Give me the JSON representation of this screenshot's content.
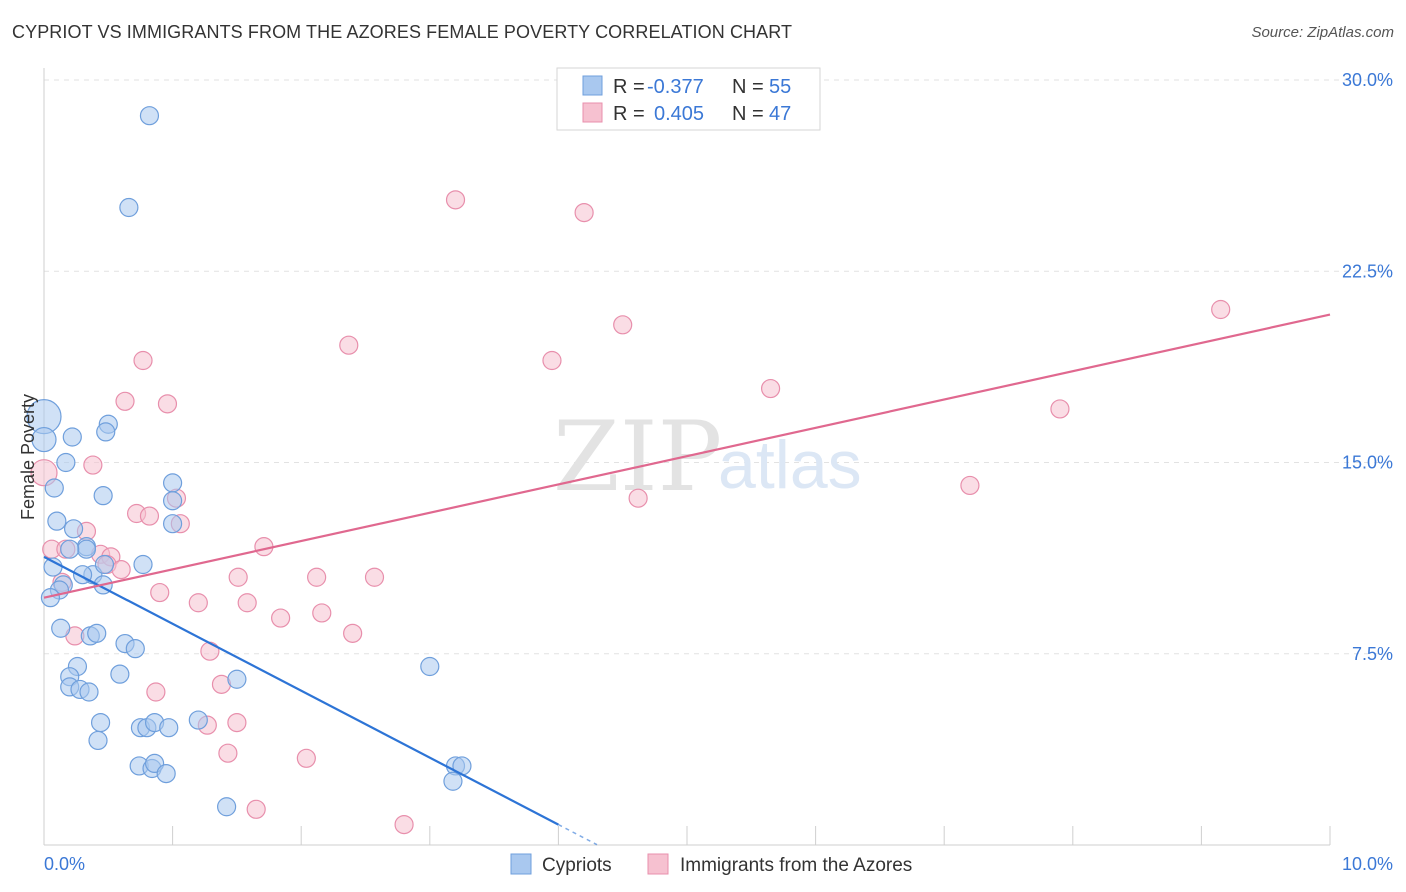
{
  "header": {
    "title": "CYPRIOT VS IMMIGRANTS FROM THE AZORES FEMALE POVERTY CORRELATION CHART",
    "source": "Source: ZipAtlas.com"
  },
  "watermark": {
    "zip": "ZIP",
    "atlas": "atlas"
  },
  "colors": {
    "cypriots_fill": "#a9c8ef",
    "cypriots_stroke": "#6f9fdc",
    "cypriots_line": "#2d74d6",
    "azores_fill": "#f6c1d0",
    "azores_stroke": "#e88fac",
    "azores_line": "#e0688f",
    "tick_label": "#3b78d6",
    "grid": "#e2e2e2"
  },
  "legend": {
    "rows": [
      {
        "r_label": "R =",
        "r_value": "-0.377",
        "n_label": "N =",
        "n_value": "55"
      },
      {
        "r_label": "R =",
        "r_value": "0.405",
        "n_label": "N =",
        "n_value": "47"
      }
    ]
  },
  "chart_data": {
    "type": "scatter",
    "title": "CYPRIOT VS IMMIGRANTS FROM THE AZORES FEMALE POVERTY CORRELATION CHART",
    "xlabel": "",
    "ylabel": "Female Poverty",
    "xlim": [
      0,
      10
    ],
    "ylim": [
      0,
      30
    ],
    "x_tick_labels": [
      "0.0%",
      "10.0%"
    ],
    "y_ticks": [
      7.5,
      15.0,
      22.5,
      30.0
    ],
    "y_tick_labels": [
      "7.5%",
      "15.0%",
      "22.5%",
      "30.0%"
    ],
    "grid": true,
    "legend_position": "top-center",
    "series": [
      {
        "name": "Cypriots",
        "r": -0.377,
        "n": 55,
        "trend": {
          "x_start": 0.0,
          "y_start": 11.3,
          "x_end": 4.0,
          "y_end": 0.8,
          "dashed_to_x": 4.3
        },
        "points": [
          [
            0.82,
            28.6
          ],
          [
            0.66,
            25.0
          ],
          [
            0.0,
            16.8
          ],
          [
            0.0,
            15.9
          ],
          [
            0.22,
            16.0
          ],
          [
            0.5,
            16.5
          ],
          [
            0.48,
            16.2
          ],
          [
            0.17,
            15.0
          ],
          [
            0.08,
            14.0
          ],
          [
            0.46,
            13.7
          ],
          [
            1.0,
            14.2
          ],
          [
            1.0,
            13.5
          ],
          [
            1.0,
            12.6
          ],
          [
            0.1,
            12.7
          ],
          [
            0.23,
            12.4
          ],
          [
            0.33,
            11.7
          ],
          [
            0.33,
            11.6
          ],
          [
            0.2,
            11.6
          ],
          [
            0.07,
            10.9
          ],
          [
            0.38,
            10.6
          ],
          [
            0.3,
            10.6
          ],
          [
            0.47,
            11.0
          ],
          [
            0.77,
            11.0
          ],
          [
            0.46,
            10.2
          ],
          [
            0.15,
            10.2
          ],
          [
            0.12,
            10.0
          ],
          [
            0.05,
            9.7
          ],
          [
            0.13,
            8.5
          ],
          [
            0.36,
            8.2
          ],
          [
            0.41,
            8.3
          ],
          [
            0.63,
            7.9
          ],
          [
            0.71,
            7.7
          ],
          [
            0.26,
            7.0
          ],
          [
            0.59,
            6.7
          ],
          [
            1.5,
            6.5
          ],
          [
            0.2,
            6.6
          ],
          [
            0.2,
            6.2
          ],
          [
            0.28,
            6.1
          ],
          [
            0.35,
            6.0
          ],
          [
            3.0,
            7.0
          ],
          [
            0.44,
            4.8
          ],
          [
            1.2,
            4.9
          ],
          [
            0.42,
            4.1
          ],
          [
            0.75,
            4.6
          ],
          [
            0.8,
            4.6
          ],
          [
            0.86,
            4.8
          ],
          [
            0.97,
            4.6
          ],
          [
            0.74,
            3.1
          ],
          [
            0.84,
            3.0
          ],
          [
            0.86,
            3.2
          ],
          [
            0.95,
            2.8
          ],
          [
            3.2,
            3.1
          ],
          [
            3.25,
            3.1
          ],
          [
            3.18,
            2.5
          ],
          [
            1.42,
            1.5
          ]
        ]
      },
      {
        "name": "Immigrants from the Azores",
        "r": 0.405,
        "n": 47,
        "trend": {
          "x_start": 0.0,
          "y_start": 9.7,
          "x_end": 10.0,
          "y_end": 20.8
        },
        "points": [
          [
            3.2,
            25.3
          ],
          [
            4.2,
            24.8
          ],
          [
            9.15,
            21.0
          ],
          [
            4.5,
            20.4
          ],
          [
            2.37,
            19.6
          ],
          [
            3.95,
            19.0
          ],
          [
            0.77,
            19.0
          ],
          [
            5.65,
            17.9
          ],
          [
            0.63,
            17.4
          ],
          [
            0.96,
            17.3
          ],
          [
            7.9,
            17.1
          ],
          [
            0.0,
            14.6
          ],
          [
            0.38,
            14.9
          ],
          [
            7.2,
            14.1
          ],
          [
            4.62,
            13.6
          ],
          [
            1.03,
            13.6
          ],
          [
            0.72,
            13.0
          ],
          [
            0.82,
            12.9
          ],
          [
            1.06,
            12.6
          ],
          [
            0.33,
            12.3
          ],
          [
            0.06,
            11.6
          ],
          [
            0.17,
            11.6
          ],
          [
            1.71,
            11.7
          ],
          [
            0.44,
            11.4
          ],
          [
            0.52,
            11.3
          ],
          [
            0.49,
            11.0
          ],
          [
            0.6,
            10.8
          ],
          [
            0.14,
            10.3
          ],
          [
            1.51,
            10.5
          ],
          [
            2.12,
            10.5
          ],
          [
            2.57,
            10.5
          ],
          [
            0.9,
            9.9
          ],
          [
            1.2,
            9.5
          ],
          [
            1.58,
            9.5
          ],
          [
            2.16,
            9.1
          ],
          [
            1.84,
            8.9
          ],
          [
            2.4,
            8.3
          ],
          [
            0.24,
            8.2
          ],
          [
            1.29,
            7.6
          ],
          [
            1.38,
            6.3
          ],
          [
            0.87,
            6.0
          ],
          [
            1.5,
            4.8
          ],
          [
            1.27,
            4.7
          ],
          [
            1.43,
            3.6
          ],
          [
            2.04,
            3.4
          ],
          [
            1.65,
            1.4
          ],
          [
            2.8,
            0.8
          ]
        ]
      }
    ]
  }
}
